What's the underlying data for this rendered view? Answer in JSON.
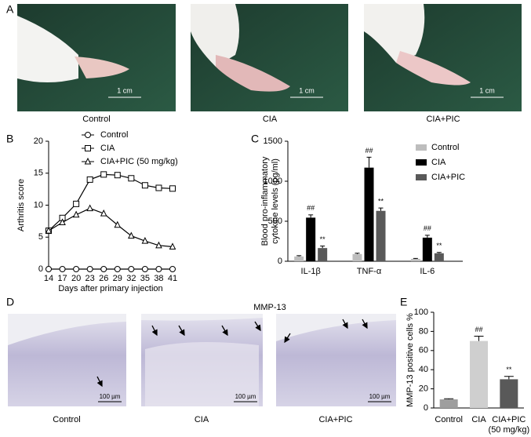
{
  "figure": {
    "panel_labels": [
      "A",
      "B",
      "C",
      "D",
      "E"
    ],
    "photos_a": {
      "captions": [
        "Control",
        "CIA",
        "CIA+PIC"
      ],
      "scale_bar": "1 cm"
    },
    "photos_d": {
      "title": "MMP-13",
      "captions": [
        "Control",
        "CIA",
        "CIA+PIC"
      ],
      "scale_bar": "100 µm"
    }
  },
  "chart_data": [
    {
      "type": "line",
      "xlabel": "Days after primary injection",
      "ylabel": "Arthritis score",
      "x": [
        14,
        17,
        20,
        23,
        26,
        29,
        32,
        35,
        38,
        41
      ],
      "xlim": [
        14,
        41
      ],
      "xticks": [
        14,
        17,
        20,
        23,
        26,
        29,
        32,
        35,
        38,
        41
      ],
      "ylim": [
        0,
        20
      ],
      "yticks": [
        0,
        5,
        10,
        15,
        20
      ],
      "series": [
        {
          "name": "Control",
          "color": "#000000",
          "marker": "circle",
          "values": [
            0,
            0,
            0,
            0,
            0,
            0,
            0,
            0,
            0,
            0
          ]
        },
        {
          "name": "CIA",
          "color": "#000000",
          "marker": "square",
          "values": [
            6,
            8,
            10.2,
            14,
            14.8,
            14.7,
            14.2,
            13.1,
            12.7,
            12.6
          ]
        },
        {
          "name": "CIA+PIC (50 mg/kg)",
          "color": "#000000",
          "marker": "triangle",
          "values": [
            6,
            7.3,
            8.5,
            9.5,
            8.7,
            6.9,
            5.2,
            4.4,
            3.7,
            3.5
          ]
        }
      ]
    },
    {
      "type": "grouped_bar",
      "ylabel": [
        "Blood pro-inflammatory",
        "cytokine levels (pg/ml)"
      ],
      "categories": [
        "IL-1β",
        "TNF-α",
        "IL-6"
      ],
      "ylim": [
        0,
        1500
      ],
      "yticks": [
        0,
        500,
        1000,
        1500
      ],
      "series": [
        {
          "name": "Control",
          "color": "#bdbdbd",
          "values": [
            60,
            90,
            30
          ],
          "errors": [
            10,
            10,
            5
          ]
        },
        {
          "name": "CIA",
          "color": "#000000",
          "values": [
            545,
            1170,
            295
          ],
          "errors": [
            35,
            130,
            30
          ],
          "annotations": [
            "##",
            "##",
            "##"
          ]
        },
        {
          "name": "CIA+PIC",
          "color": "#595959",
          "values": [
            165,
            630,
            100
          ],
          "errors": [
            25,
            35,
            10
          ],
          "annotations": [
            "**",
            "**",
            "**"
          ]
        }
      ]
    },
    {
      "type": "bar",
      "ylabel": "MMP-13 positive cells %",
      "categories": [
        [
          "Control"
        ],
        [
          "CIA"
        ],
        [
          "CIA+PIC",
          "(50 mg/kg)"
        ]
      ],
      "values": [
        9,
        70,
        30
      ],
      "errors": [
        0.6,
        5,
        3
      ],
      "colors": [
        "#9e9e9e",
        "#cfcfcf",
        "#595959"
      ],
      "annotations": [
        null,
        "##",
        "**"
      ],
      "ylim": [
        0,
        100
      ],
      "yticks": [
        0,
        20,
        40,
        60,
        80,
        100
      ]
    }
  ]
}
